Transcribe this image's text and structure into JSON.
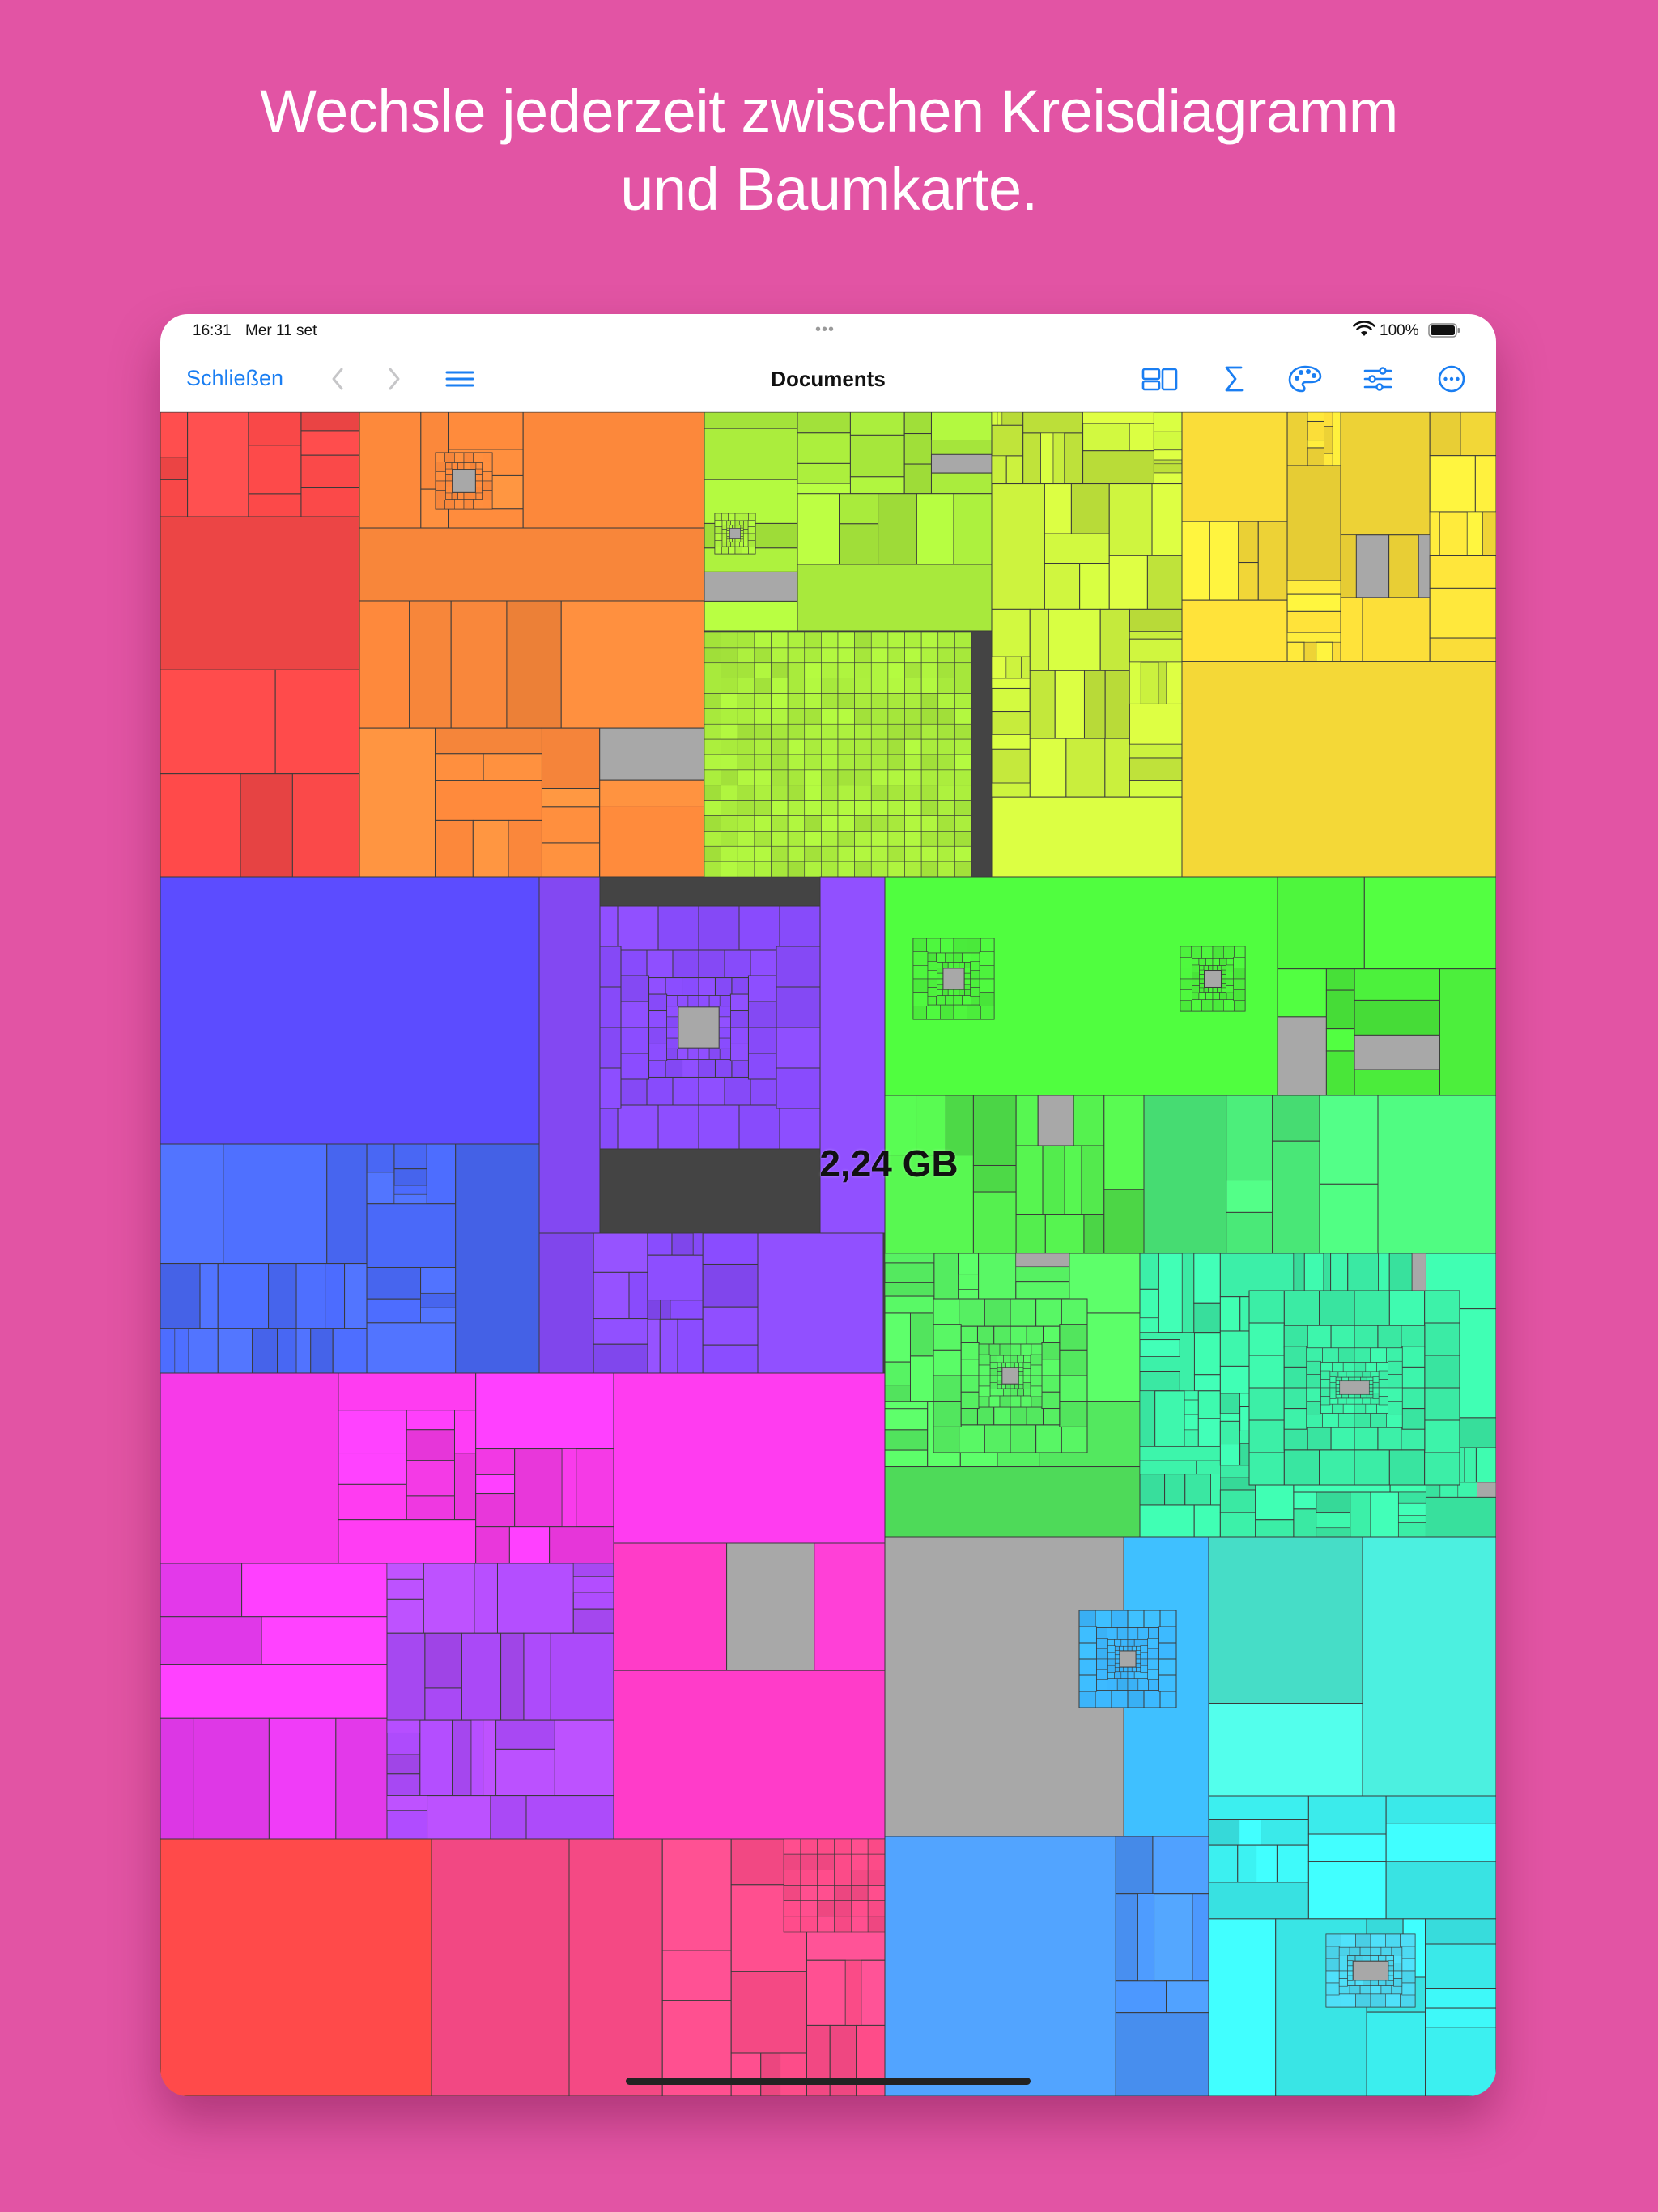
{
  "headline": {
    "line1": "Wechsle jederzeit zwischen Kreisdiagramm",
    "line2": "und Baumkarte."
  },
  "status_bar": {
    "time": "16:31",
    "date": "Mer 11 set",
    "battery": "100%",
    "icons": [
      "wifi-icon",
      "battery-icon"
    ]
  },
  "toolbar": {
    "close_label": "Schließen",
    "title": "Documents",
    "left_icons": [
      "chevron-left-icon",
      "chevron-right-icon",
      "list-icon"
    ],
    "right_icons": [
      "view-mode-icon",
      "sigma-icon",
      "palette-icon",
      "sliders-icon",
      "more-icon"
    ]
  },
  "treemap": {
    "selected_size": "2,24 GB",
    "colors": {
      "red": "#ff4a4a",
      "orange": "#ff8a3c",
      "lime": "#aef23e",
      "yellow": "#ffe23a",
      "blue_violet": "#5c4cff",
      "purple": "#8a4cff",
      "green": "#4cf03c",
      "mint": "#3cf0a8",
      "magenta": "#ff3cf0",
      "violet": "#b04cff",
      "pink": "#ff4c8a",
      "sky": "#3cb8ff",
      "cyan": "#3cf0f0",
      "folder_gray": "#a8a8a8"
    }
  }
}
